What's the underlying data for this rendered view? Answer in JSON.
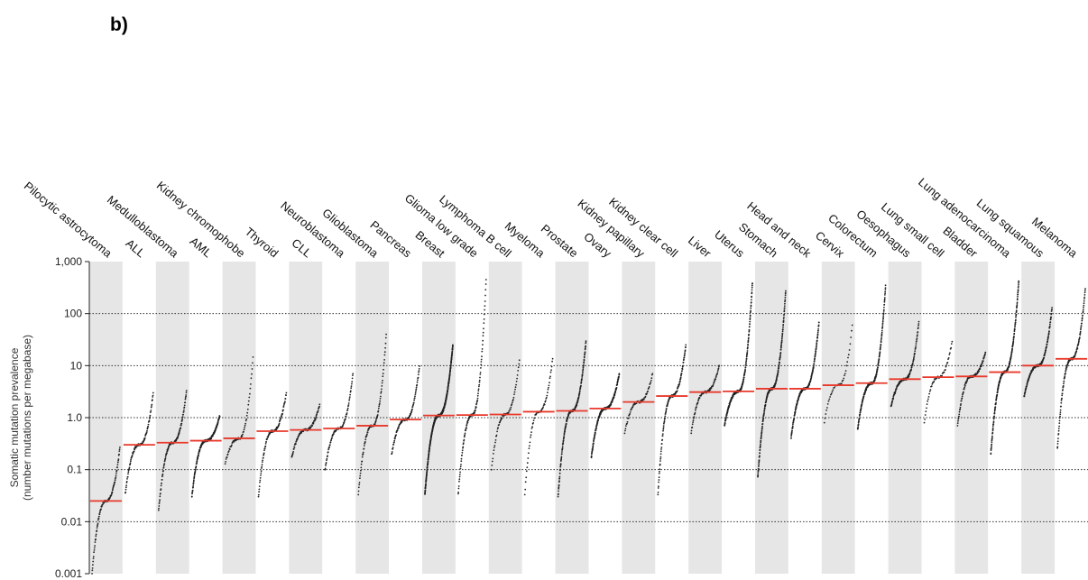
{
  "panel_label": "b)",
  "chart_data": {
    "type": "scatter",
    "ylabel_line1": "Somatic mutation prevalence",
    "ylabel_line2": "(number mutations per megabase)",
    "yscale": "log",
    "ylim": [
      0.001,
      1000
    ],
    "yticks": [
      {
        "value": 1000,
        "label": "1,000"
      },
      {
        "value": 100,
        "label": "100"
      },
      {
        "value": 10,
        "label": "10"
      },
      {
        "value": 1,
        "label": "1.0"
      },
      {
        "value": 0.1,
        "label": "0.1"
      },
      {
        "value": 0.01,
        "label": "0.01"
      },
      {
        "value": 0.001,
        "label": "0.001"
      }
    ],
    "grid": "horizontal dotted lines at 100, 10, 1.0, 0.1, 0.01",
    "column_shading": "alternating grey and white bands",
    "median_color": "#e8392b",
    "point_color": "#222222",
    "categories": [
      {
        "name": "Pilocytic astrocytoma",
        "median": 0.025,
        "min": 0.001,
        "max": 0.27,
        "n": 100
      },
      {
        "name": "ALL",
        "median": 0.3,
        "min": 0.035,
        "max": 3.0,
        "n": 100
      },
      {
        "name": "Medulloblastoma",
        "median": 0.33,
        "min": 0.016,
        "max": 3.3,
        "n": 120
      },
      {
        "name": "AML",
        "median": 0.36,
        "min": 0.03,
        "max": 1.1,
        "n": 190
      },
      {
        "name": "Kidney chromophobe",
        "median": 0.4,
        "min": 0.13,
        "max": 15,
        "n": 60
      },
      {
        "name": "Thyroid",
        "median": 0.55,
        "min": 0.03,
        "max": 3.0,
        "n": 100
      },
      {
        "name": "CLL",
        "median": 0.58,
        "min": 0.17,
        "max": 1.8,
        "n": 90
      },
      {
        "name": "Neuroblastoma",
        "median": 0.62,
        "min": 0.1,
        "max": 7,
        "n": 90
      },
      {
        "name": "Glioblastoma",
        "median": 0.7,
        "min": 0.033,
        "max": 40,
        "n": 90
      },
      {
        "name": "Pancreas",
        "median": 0.92,
        "min": 0.2,
        "max": 10,
        "n": 100
      },
      {
        "name": "Breast",
        "median": 1.1,
        "min": 0.033,
        "max": 25,
        "n": 500
      },
      {
        "name": "Glioma low grade",
        "median": 1.12,
        "min": 0.033,
        "max": 450,
        "n": 110
      },
      {
        "name": "Lymphoma B cell",
        "median": 1.15,
        "min": 0.1,
        "max": 13,
        "n": 60
      },
      {
        "name": "Myeloma",
        "median": 1.3,
        "min": 0.033,
        "max": 14,
        "n": 60
      },
      {
        "name": "Prostate",
        "median": 1.35,
        "min": 0.03,
        "max": 30,
        "n": 200
      },
      {
        "name": "Ovary",
        "median": 1.5,
        "min": 0.17,
        "max": 7,
        "n": 220
      },
      {
        "name": "Kidney papillary",
        "median": 2.0,
        "min": 0.5,
        "max": 7,
        "n": 60
      },
      {
        "name": "Kidney clear cell",
        "median": 2.6,
        "min": 0.033,
        "max": 25,
        "n": 140
      },
      {
        "name": "Liver",
        "median": 3.1,
        "min": 0.5,
        "max": 10,
        "n": 80
      },
      {
        "name": "Uterus",
        "median": 3.2,
        "min": 0.7,
        "max": 400,
        "n": 240
      },
      {
        "name": "Stomach",
        "median": 3.6,
        "min": 0.07,
        "max": 280,
        "n": 240
      },
      {
        "name": "Head and neck",
        "median": 3.6,
        "min": 0.4,
        "max": 70,
        "n": 210
      },
      {
        "name": "Cervix",
        "median": 4.2,
        "min": 0.8,
        "max": 60,
        "n": 40
      },
      {
        "name": "Colorectum",
        "median": 4.6,
        "min": 0.6,
        "max": 350,
        "n": 220
      },
      {
        "name": "Oesophagus",
        "median": 5.5,
        "min": 1.6,
        "max": 70,
        "n": 130
      },
      {
        "name": "Lung small cell",
        "median": 6.0,
        "min": 0.8,
        "max": 30,
        "n": 50
      },
      {
        "name": "Bladder",
        "median": 6.2,
        "min": 0.7,
        "max": 18,
        "n": 100
      },
      {
        "name": "Lung adenocarcinoma",
        "median": 7.5,
        "min": 0.2,
        "max": 420,
        "n": 240
      },
      {
        "name": "Lung squamous",
        "median": 10,
        "min": 2.5,
        "max": 130,
        "n": 170
      },
      {
        "name": "Melanoma",
        "median": 13.5,
        "min": 0.25,
        "max": 300,
        "n": 140
      }
    ]
  }
}
